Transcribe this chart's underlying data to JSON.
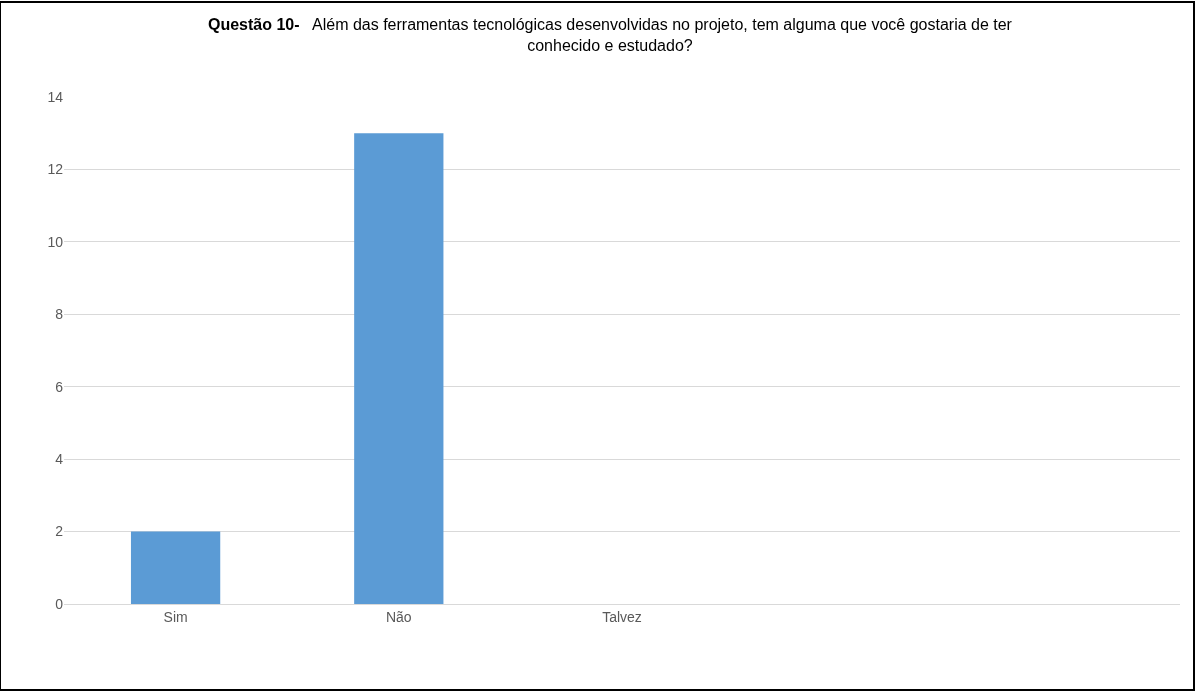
{
  "chart_data": {
    "type": "bar",
    "title": "Questão 10-",
    "subtitle": "Além das ferramentas tecnológicas desenvolvidas no projeto, tem alguma que você gostaria de ter conhecido e estudado?",
    "categories": [
      "Sim",
      "Não",
      "Talvez",
      null,
      null
    ],
    "values": [
      2,
      13,
      null,
      null,
      null
    ],
    "color": "#5b9bd5",
    "ylim": [
      0,
      14
    ],
    "yticks": [
      0,
      2,
      4,
      6,
      8,
      10,
      12,
      14
    ],
    "grid": "y"
  }
}
